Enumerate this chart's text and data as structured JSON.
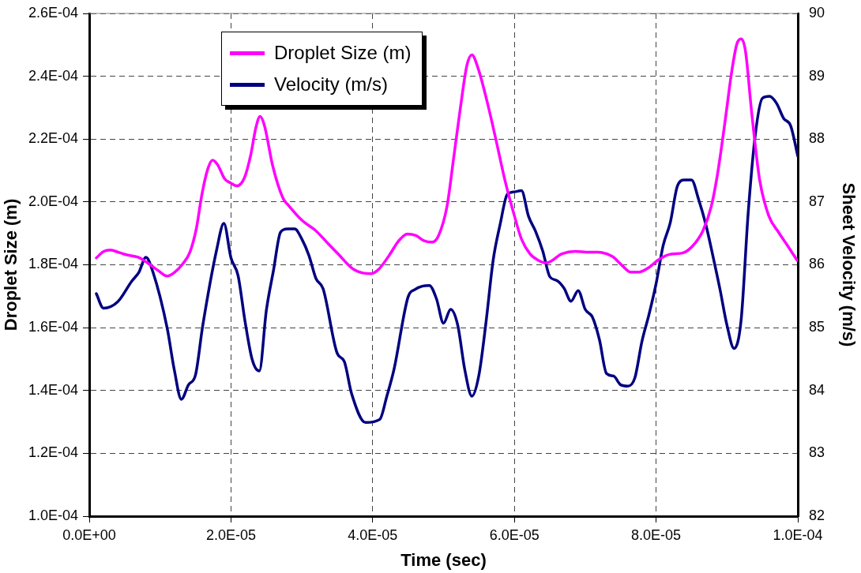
{
  "chart_data": {
    "type": "line",
    "xlabel": "Time (sec)",
    "ylabel": "Droplet Size (m)",
    "y2label": "Sheet Velocity (m/s)",
    "xlim": [
      0,
      0.0001
    ],
    "xticks": [
      {
        "value": 0,
        "label": "0.0E+00"
      },
      {
        "value": 2e-05,
        "label": "2.0E-05"
      },
      {
        "value": 4e-05,
        "label": "4.0E-05"
      },
      {
        "value": 6e-05,
        "label": "6.0E-05"
      },
      {
        "value": 8e-05,
        "label": "8.0E-05"
      },
      {
        "value": 0.0001,
        "label": "1.0E-04"
      }
    ],
    "ylim": [
      0.0001,
      0.00026
    ],
    "yticks": [
      {
        "value": 0.0001,
        "label": "1.0E-04"
      },
      {
        "value": 0.00012,
        "label": "1.2E-04"
      },
      {
        "value": 0.00014,
        "label": "1.4E-04"
      },
      {
        "value": 0.00016,
        "label": "1.6E-04"
      },
      {
        "value": 0.00018,
        "label": "1.8E-04"
      },
      {
        "value": 0.0002,
        "label": "2.0E-04"
      },
      {
        "value": 0.00022,
        "label": "2.2E-04"
      },
      {
        "value": 0.00024,
        "label": "2.4E-04"
      },
      {
        "value": 0.00026,
        "label": "2.6E-04"
      }
    ],
    "y2lim": [
      82,
      90
    ],
    "y2ticks": [
      82,
      83,
      84,
      85,
      86,
      87,
      88,
      89,
      90
    ],
    "grid": true,
    "legend": "top left",
    "marker": "none",
    "line_style": "solid",
    "series": [
      {
        "name": "Droplet Size (m)",
        "color": "#ff00ff",
        "x": [
          1e-06,
          2e-06,
          3e-06,
          4.1e-06,
          5.2e-06,
          6.9e-06,
          8.1e-06,
          9.7e-06,
          1.1e-05,
          1.2e-05,
          1.32e-05,
          1.42e-05,
          1.51e-05,
          1.59e-05,
          1.67e-05,
          1.74e-05,
          1.81e-05,
          1.91e-05,
          1.99e-05,
          2.08e-05,
          2.19e-05,
          2.28e-05,
          2.35e-05,
          2.41e-05,
          2.47e-05,
          2.59e-05,
          2.73e-05,
          2.82e-05,
          3.01e-05,
          3.19e-05,
          3.39e-05,
          3.51e-05,
          3.72e-05,
          3.86e-05,
          3.98e-05,
          4.09e-05,
          4.23e-05,
          4.37e-05,
          4.49e-05,
          4.61e-05,
          4.72e-05,
          4.84e-05,
          4.93e-05,
          5.05e-05,
          5.14e-05,
          5.24e-05,
          5.33e-05,
          5.4e-05,
          5.49e-05,
          5.61e-05,
          5.73e-05,
          5.87e-05,
          6e-05,
          6.1e-05,
          6.22e-05,
          6.34e-05,
          6.45e-05,
          6.67e-05,
          6.86e-05,
          7.05e-05,
          7.17e-05,
          7.38e-05,
          7.52e-05,
          7.64e-05,
          7.76e-05,
          7.91e-05,
          8.02e-05,
          8.19e-05,
          8.38e-05,
          8.52e-05,
          8.66e-05,
          8.78e-05,
          8.87e-05,
          8.97e-05,
          9.07e-05,
          9.14e-05,
          9.2e-05,
          9.26e-05,
          9.35e-05,
          9.46e-05,
          9.59e-05,
          9.73e-05,
          9.87e-05,
          9.99e-05
        ],
        "values": [
          0.0001822,
          0.0001842,
          0.0001847,
          0.000184,
          0.0001832,
          0.0001824,
          0.0001808,
          0.0001782,
          0.0001764,
          0.0001775,
          0.0001803,
          0.000184,
          0.0001914,
          0.0002024,
          0.0002103,
          0.0002133,
          0.0002119,
          0.0002074,
          0.0002061,
          0.0002051,
          0.0002077,
          0.0002151,
          0.0002235,
          0.0002272,
          0.0002245,
          0.0002114,
          0.0002014,
          0.0001987,
          0.000194,
          0.000191,
          0.0001863,
          0.0001835,
          0.0001787,
          0.0001774,
          0.0001772,
          0.0001787,
          0.0001829,
          0.0001877,
          0.0001898,
          0.0001893,
          0.0001877,
          0.0001872,
          0.0001893,
          0.0001987,
          0.0002135,
          0.0002303,
          0.0002435,
          0.0002468,
          0.0002424,
          0.0002324,
          0.0002208,
          0.0002066,
          0.0001956,
          0.0001882,
          0.0001835,
          0.0001814,
          0.0001806,
          0.0001835,
          0.0001843,
          0.000184,
          0.000184,
          0.0001827,
          0.0001798,
          0.0001777,
          0.0001777,
          0.0001793,
          0.0001814,
          0.0001833,
          0.0001838,
          0.0001861,
          0.0001908,
          0.0001987,
          0.0002093,
          0.0002251,
          0.0002419,
          0.0002503,
          0.0002519,
          0.0002482,
          0.0002282,
          0.0002072,
          0.0001956,
          0.0001903,
          0.0001856,
          0.0001814
        ]
      },
      {
        "name": "Velocity (m/s)",
        "color": "#000080",
        "axis": "y2",
        "x": [
          1e-06,
          2e-06,
          4e-06,
          6e-06,
          7e-06,
          8e-06,
          9e-06,
          1.1e-05,
          1.2e-05,
          1.3e-05,
          1.4e-05,
          1.5e-05,
          1.6e-05,
          1.8e-05,
          1.9e-05,
          2e-05,
          2.1e-05,
          2.2e-05,
          2.3e-05,
          2.4e-05,
          2.5e-05,
          2.6e-05,
          2.7e-05,
          2.8e-05,
          2.9e-05,
          3e-05,
          3.1e-05,
          3.2e-05,
          3.3e-05,
          3.5e-05,
          3.6e-05,
          3.7e-05,
          3.9e-05,
          4.1e-05,
          4.2e-05,
          4.3e-05,
          4.5e-05,
          4.6e-05,
          4.7e-05,
          4.8e-05,
          4.9e-05,
          5e-05,
          5.1e-05,
          5.2e-05,
          5.3e-05,
          5.4e-05,
          5.5e-05,
          5.6e-05,
          5.7e-05,
          5.8e-05,
          5.9e-05,
          6e-05,
          6.1e-05,
          6.2e-05,
          6.3e-05,
          6.4e-05,
          6.5e-05,
          6.6e-05,
          6.7e-05,
          6.8e-05,
          6.9e-05,
          7e-05,
          7.1e-05,
          7.2e-05,
          7.3e-05,
          7.4e-05,
          7.5e-05,
          7.6e-05,
          7.7e-05,
          7.8e-05,
          7.9e-05,
          8e-05,
          8.1e-05,
          8.2e-05,
          8.3e-05,
          8.4e-05,
          8.5e-05,
          8.6e-05,
          8.7e-05,
          8.8e-05,
          8.9e-05,
          9e-05,
          9.1e-05,
          9.2e-05,
          9.3e-05,
          9.4e-05,
          9.5e-05,
          9.6e-05,
          9.7e-05,
          9.8e-05,
          9.9e-05,
          0.0001
        ],
        "values": [
          85.54,
          85.31,
          85.41,
          85.74,
          85.88,
          86.12,
          85.88,
          84.99,
          84.33,
          83.86,
          84.09,
          84.25,
          85.02,
          86.25,
          86.66,
          86.11,
          85.83,
          85.09,
          84.49,
          84.31,
          85.28,
          85.91,
          86.52,
          86.57,
          86.57,
          86.41,
          86.15,
          85.78,
          85.62,
          84.59,
          84.46,
          83.96,
          83.49,
          83.54,
          83.91,
          84.33,
          85.49,
          85.61,
          85.66,
          85.67,
          85.46,
          85.07,
          85.29,
          85.04,
          84.33,
          83.91,
          84.25,
          85.09,
          86.07,
          86.65,
          87.12,
          87.16,
          87.18,
          86.77,
          86.53,
          86.22,
          85.81,
          85.75,
          85.63,
          85.42,
          85.59,
          85.29,
          85.17,
          84.81,
          84.27,
          84.23,
          84.09,
          84.07,
          84.2,
          84.78,
          85.21,
          85.7,
          86.31,
          86.67,
          87.25,
          87.35,
          87.35,
          87.04,
          86.65,
          86.15,
          85.62,
          85.04,
          84.67,
          85.12,
          86.83,
          88.07,
          88.65,
          88.68,
          88.57,
          88.33,
          88.21,
          87.73
        ]
      }
    ]
  }
}
